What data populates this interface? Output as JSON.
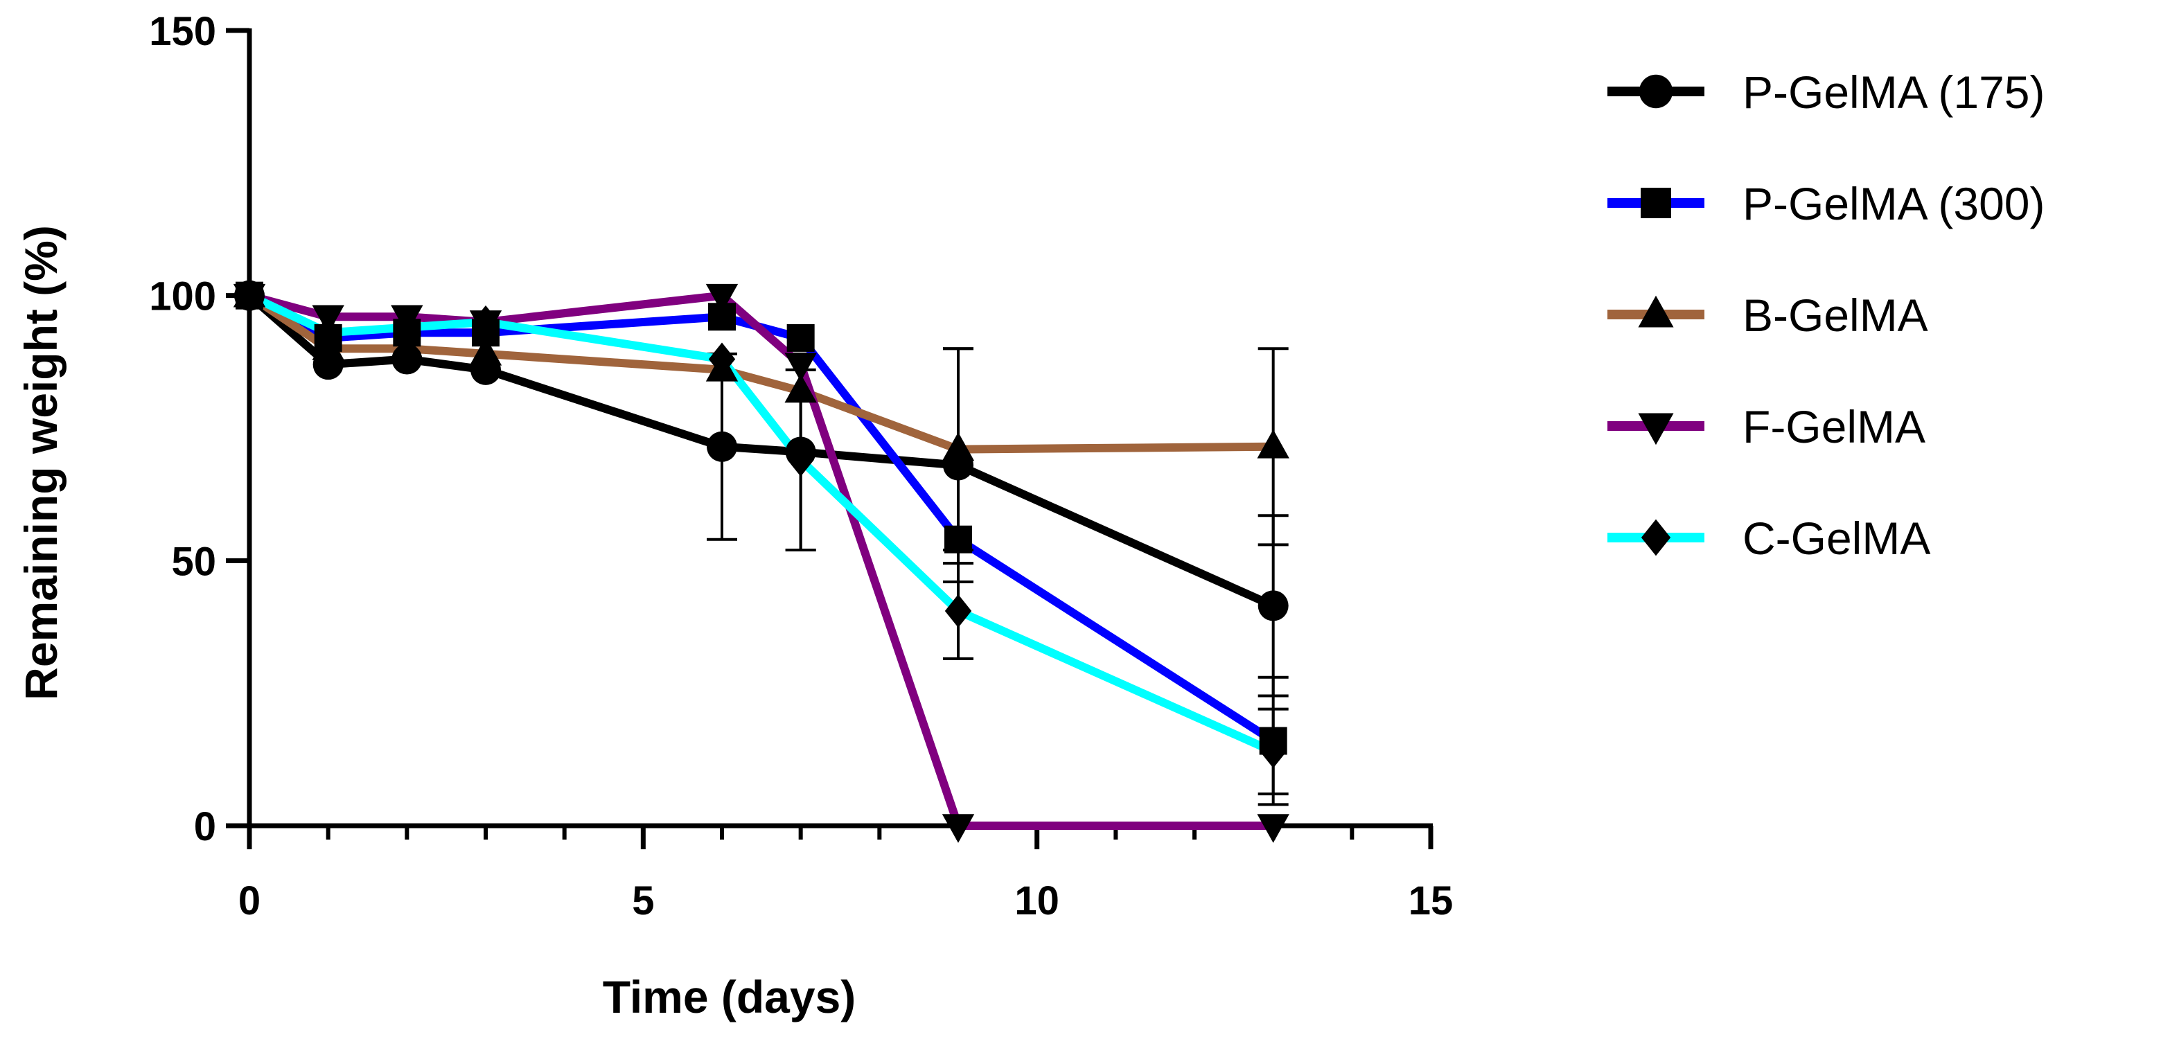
{
  "chart_data": {
    "type": "line",
    "title": "",
    "xlabel": "Time (days)",
    "ylabel": "Remaining weight (%)",
    "xlim": [
      0,
      15
    ],
    "ylim": [
      0,
      150
    ],
    "xticks": [
      0,
      5,
      10,
      15
    ],
    "yticks": [
      0,
      50,
      100,
      150
    ],
    "x_minor_ticks": [
      1,
      2,
      3,
      4,
      6,
      7,
      8,
      9,
      11,
      12,
      13,
      14
    ],
    "grid": false,
    "legend_position": "right",
    "series": [
      {
        "name": "P-GelMA (175)",
        "color": "#000000",
        "marker": "circle",
        "x": [
          0,
          1,
          2,
          3,
          6,
          7,
          9,
          13
        ],
        "y": [
          100,
          87,
          88,
          86,
          71.5,
          70.5,
          68,
          41.5
        ],
        "err": [
          0,
          0,
          0,
          0,
          17.5,
          18.5,
          22,
          17
        ]
      },
      {
        "name": "P-GelMA (300)",
        "color": "#0000ff",
        "marker": "square",
        "x": [
          0,
          1,
          2,
          3,
          6,
          7,
          9,
          13
        ],
        "y": [
          100,
          92,
          93,
          93,
          96,
          92,
          54,
          16
        ],
        "err": [
          0,
          0,
          0,
          0,
          0,
          0,
          0,
          12
        ]
      },
      {
        "name": "B-GelMA",
        "color": "#a0643c",
        "marker": "triangle-up",
        "x": [
          0,
          1,
          2,
          3,
          6,
          7,
          9,
          13
        ],
        "y": [
          100,
          90,
          90,
          89,
          86,
          82,
          71,
          71.5
        ],
        "err": [
          0,
          0,
          0,
          0,
          0,
          0,
          19,
          18.5
        ]
      },
      {
        "name": "F-GelMA",
        "color": "#80007f",
        "marker": "triangle-down",
        "x": [
          0,
          1,
          2,
          3,
          6,
          7,
          9,
          13
        ],
        "y": [
          100,
          96,
          96,
          95,
          100,
          87,
          0,
          0
        ],
        "err": [
          0,
          0,
          0,
          0,
          0,
          0,
          0,
          0
        ]
      },
      {
        "name": "C-GelMA",
        "color": "#00ffff",
        "marker": "diamond",
        "x": [
          0,
          1,
          2,
          3,
          6,
          7,
          9,
          13
        ],
        "y": [
          100,
          93,
          94,
          95,
          88,
          69,
          40.5,
          14
        ],
        "err": [
          0,
          0,
          0,
          0,
          0,
          17,
          9,
          8
        ]
      }
    ]
  }
}
